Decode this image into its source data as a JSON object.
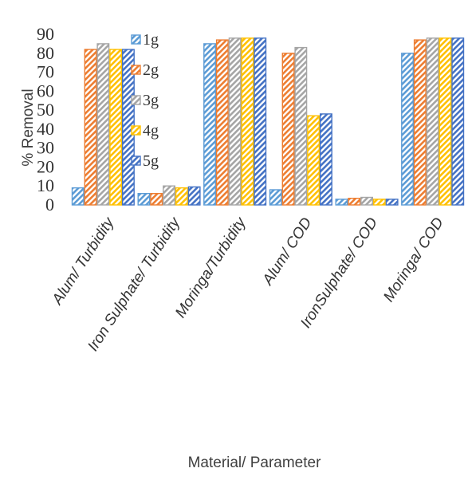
{
  "chart_data": {
    "type": "bar",
    "title": "",
    "xlabel": "Material/ Parameter",
    "ylabel": "% Removal",
    "ylim": [
      0,
      90
    ],
    "yticks": [
      0,
      10,
      20,
      30,
      40,
      50,
      60,
      70,
      80,
      90
    ],
    "grid": false,
    "legend_position": "top-left",
    "categories": [
      "Alum/ Turbidity",
      "Iron Sulphate/ Turbidity",
      "Moringa/Turbidity",
      "Alum/ COD",
      "IronSulphate/ COD",
      "Moringa/ COD"
    ],
    "series": [
      {
        "name": "1g",
        "color": "#5B9BD5",
        "values": [
          9,
          6,
          85,
          8,
          3,
          80
        ]
      },
      {
        "name": "2g",
        "color": "#ED7D31",
        "values": [
          82,
          6,
          87,
          80,
          3.5,
          87
        ]
      },
      {
        "name": "3g",
        "color": "#A5A5A5",
        "values": [
          85,
          10,
          88,
          83,
          4,
          88
        ]
      },
      {
        "name": "4g",
        "color": "#FFC000",
        "values": [
          82,
          9,
          88,
          47,
          3,
          88
        ]
      },
      {
        "name": "5g",
        "color": "#4472C4",
        "values": [
          82,
          9.5,
          88,
          48,
          3,
          88
        ]
      }
    ]
  }
}
